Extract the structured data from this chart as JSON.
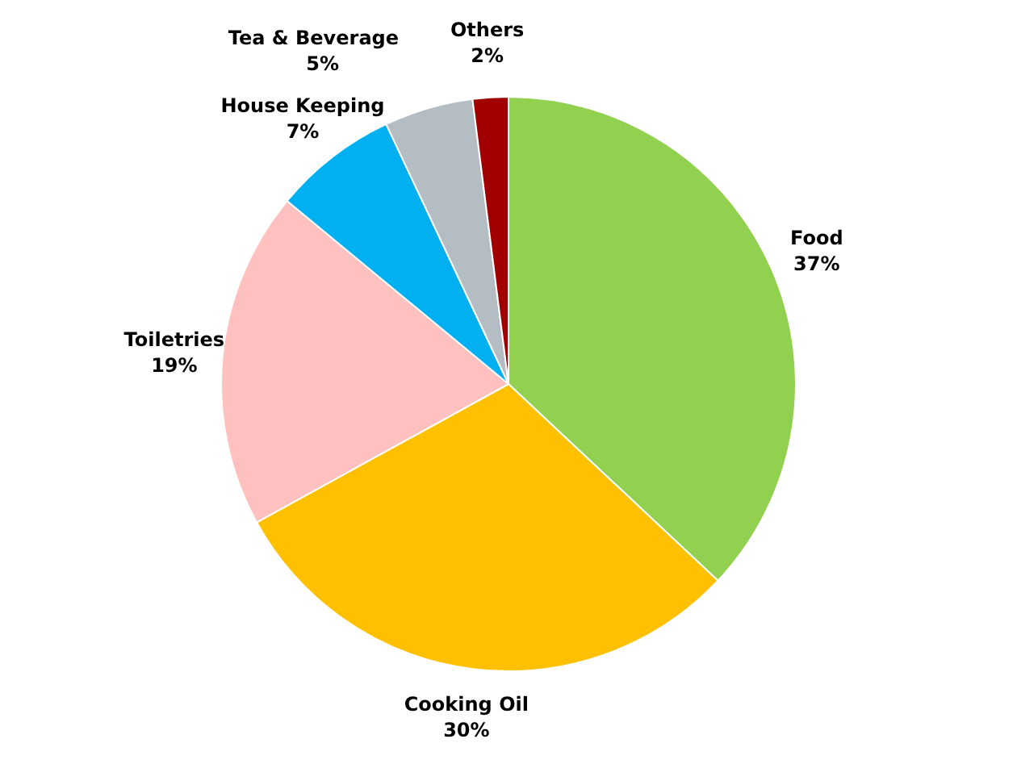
{
  "chart_data": {
    "type": "pie",
    "categories": [
      "Food",
      "Cooking Oil",
      "Toiletries",
      "House Keeping",
      "Tea & Beverage",
      "Others"
    ],
    "values": [
      37,
      30,
      19,
      7,
      5,
      2
    ],
    "colors": [
      "#92d050",
      "#ffc000",
      "#ffc0c0",
      "#00b0f0",
      "#b4bcc4",
      "#a00000"
    ],
    "value_labels": [
      "37%",
      "30%",
      "19%",
      "7%",
      "5%",
      "2%"
    ],
    "legend": false
  }
}
